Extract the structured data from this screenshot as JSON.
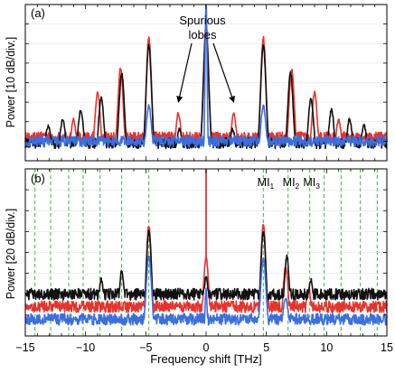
{
  "chart_data": [
    {
      "panel_label": "(a)",
      "type": "line",
      "ylabel": "Power [10 dB/div.]",
      "xlim": [
        -15,
        15
      ],
      "y_divisions": 8,
      "annotation": {
        "line1": "Spurious",
        "line2": "lobes",
        "targets_x": [
          -2.3,
          2.3
        ]
      },
      "series": [
        {
          "color": "#e8332b",
          "floor_db": 1.2,
          "peaks": [
            [
              0,
              7.0
            ],
            [
              -4.75,
              6.3
            ],
            [
              4.75,
              6.3
            ],
            [
              -7.1,
              4.7
            ],
            [
              7.1,
              4.7
            ],
            [
              -9.0,
              3.5
            ],
            [
              9.0,
              3.5
            ],
            [
              -2.3,
              2.4
            ],
            [
              2.3,
              2.4
            ],
            [
              -11.0,
              2.1
            ],
            [
              11.0,
              2.1
            ]
          ]
        },
        {
          "color": "#111111",
          "floor_db": 0.9,
          "peaks": [
            [
              0,
              6.6
            ],
            [
              -4.75,
              5.9
            ],
            [
              4.75,
              5.9
            ],
            [
              -7.0,
              4.5
            ],
            [
              7.0,
              4.5
            ],
            [
              -8.7,
              3.2
            ],
            [
              8.7,
              3.2
            ],
            [
              -10.4,
              2.6
            ],
            [
              10.4,
              2.6
            ],
            [
              -11.9,
              2.1
            ],
            [
              11.9,
              2.1
            ],
            [
              -13.1,
              1.8
            ],
            [
              13.1,
              1.8
            ],
            [
              -2.2,
              1.6
            ],
            [
              2.2,
              1.6
            ]
          ]
        },
        {
          "color": "#3b6fe0",
          "floor_db": 1.0,
          "peaks": [
            [
              0,
              8.3
            ],
            [
              -4.75,
              2.8
            ],
            [
              4.75,
              2.8
            ]
          ]
        }
      ]
    },
    {
      "panel_label": "(b)",
      "type": "line",
      "ylabel": "Power [20 dB/div.]",
      "xlabel": "Frequency shift [THz]",
      "xlim": [
        -15,
        15
      ],
      "xticks": [
        -15,
        -10,
        -5,
        0,
        5,
        10,
        15
      ],
      "y_divisions": 8,
      "annotations": [
        {
          "main": "MI",
          "sub": "1",
          "x": 4.7
        },
        {
          "main": "MI",
          "sub": "2",
          "x": 6.8
        },
        {
          "main": "MI",
          "sub": "3",
          "x": 8.5
        }
      ],
      "reference_lines_x": [
        -14.2,
        -12.9,
        -11.4,
        -10.2,
        -8.8,
        -7.0,
        -4.75,
        4.75,
        6.8,
        8.6,
        9.8,
        11.2,
        12.8,
        14.2
      ],
      "reference_line_color": "#33bb33",
      "marker_line_x": 0,
      "marker_line_color": "#e8332b",
      "series": [
        {
          "color": "#e8332b",
          "floor_db": 1.4,
          "peaks": [
            [
              -4.75,
              5.3
            ],
            [
              4.75,
              5.3
            ],
            [
              0,
              3.7
            ],
            [
              6.6,
              3.3
            ],
            [
              -2.3,
              1.5
            ],
            [
              2.3,
              1.4
            ],
            [
              8.5,
              2.3
            ],
            [
              -7.0,
              1.2
            ]
          ]
        },
        {
          "color": "#111111",
          "floor_db": 2.0,
          "peaks": [
            [
              -4.75,
              5.0
            ],
            [
              4.75,
              5.0
            ],
            [
              6.7,
              3.8
            ],
            [
              -7.0,
              3.1
            ],
            [
              -8.7,
              2.7
            ],
            [
              8.7,
              2.7
            ],
            [
              -10.2,
              2.2
            ],
            [
              10.2,
              2.0
            ],
            [
              -11.6,
              1.8
            ],
            [
              0,
              2.8
            ],
            [
              -13.0,
              1.4
            ]
          ]
        },
        {
          "color": "#3b6fe0",
          "floor_db": 0.8,
          "peaks": [
            [
              -4.75,
              3.8
            ],
            [
              4.75,
              3.7
            ],
            [
              0,
              2.2
            ],
            [
              6.6,
              1.8
            ]
          ]
        }
      ]
    }
  ]
}
